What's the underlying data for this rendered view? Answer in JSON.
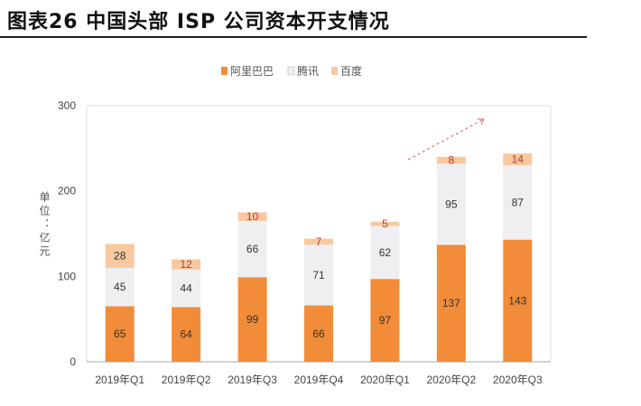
{
  "title": "图表26    中国头部 ISP 公司资本开支情况",
  "chart_data": {
    "type": "bar",
    "stacked": true,
    "categories": [
      "2019年Q1",
      "2019年Q2",
      "2019年Q3",
      "2019年Q4",
      "2020年Q1",
      "2020年Q2",
      "2020年Q3"
    ],
    "series": [
      {
        "name": "阿里巴巴",
        "values": [
          65,
          64,
          99,
          66,
          97,
          137,
          143
        ],
        "color": "#f28c38"
      },
      {
        "name": "腾讯",
        "values": [
          45,
          44,
          66,
          71,
          62,
          95,
          87
        ],
        "color": "#efeff2"
      },
      {
        "name": "百度",
        "values": [
          28,
          12,
          10,
          7,
          5,
          8,
          14
        ],
        "color": "#f8c9a0"
      }
    ],
    "ylabel": "单位：亿元",
    "ylim": [
      0,
      300
    ],
    "yticks": [
      0,
      100,
      200,
      300
    ],
    "legend": "top-center",
    "grid": false,
    "annotation": "dashed upward trend arrow over 2020 bars"
  }
}
